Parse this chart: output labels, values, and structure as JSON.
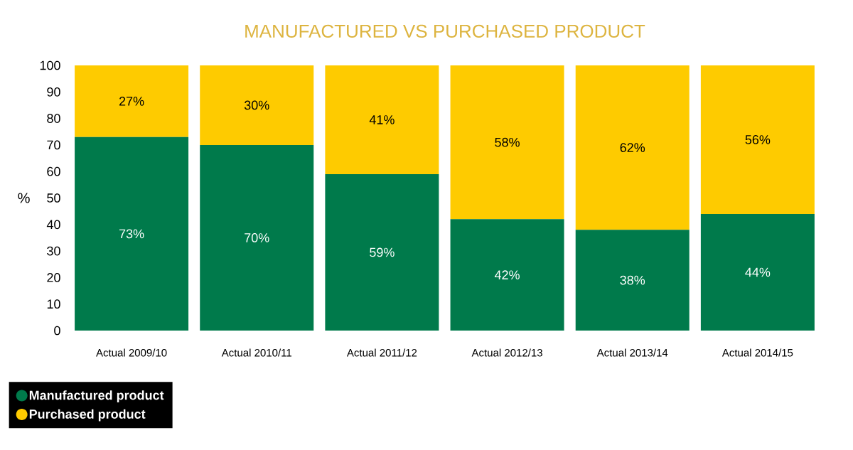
{
  "chart_data": {
    "type": "bar",
    "title": "MANUFACTURED VS PURCHASED PRODUCT",
    "ylabel": "%",
    "categories": [
      "Actual 2009/10",
      "Actual 2010/11",
      "Actual 2011/12",
      "Actual 2012/13",
      "Actual 2013/14",
      "Actual 2014/15"
    ],
    "series": [
      {
        "name": "Manufactured product",
        "color": "#007a4b",
        "values": [
          73,
          70,
          59,
          42,
          38,
          44
        ],
        "value_labels": [
          "73%",
          "70%",
          "59%",
          "42%",
          "38%",
          "44%"
        ]
      },
      {
        "name": "Purchased product",
        "color": "#fecb00",
        "values": [
          27,
          30,
          41,
          58,
          62,
          56
        ],
        "value_labels": [
          "27%",
          "30%",
          "41%",
          "58%",
          "62%",
          "56%"
        ]
      }
    ],
    "stacked": true,
    "ylim": [
      0,
      100
    ],
    "yticks": [
      0,
      10,
      20,
      30,
      40,
      50,
      60,
      70,
      80,
      90,
      100
    ],
    "legend": "bottom left"
  }
}
